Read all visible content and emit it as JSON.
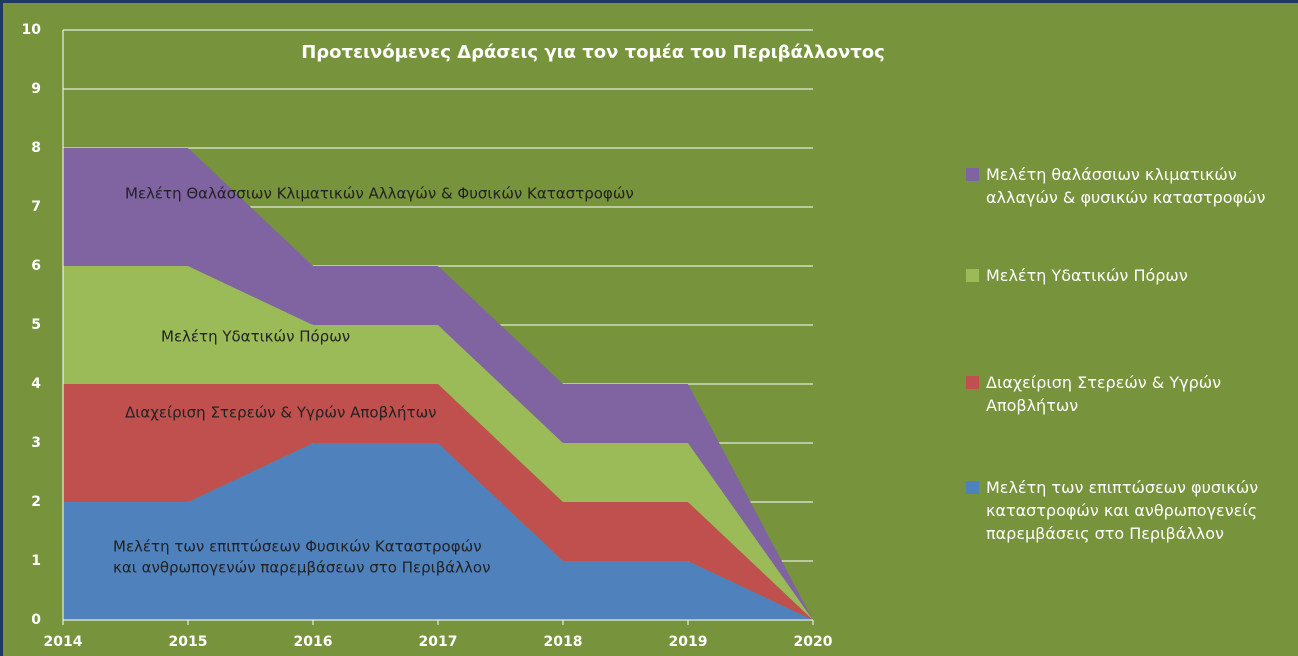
{
  "chart_data": {
    "type": "stacked-area",
    "title": "Προτεινόμενες Δράσεις για τον τομέα του Περιβάλλοντος",
    "x": [
      2014,
      2015,
      2016,
      2017,
      2018,
      2019,
      2020
    ],
    "series": [
      {
        "name": "Μελέτη των επιπτώσεων φυσικών καταστροφών και ανθρωπογενείς παρεμβάσεις στο Περιβάλλον",
        "color": "#4f81bd",
        "values": [
          2,
          2,
          3,
          3,
          1,
          1,
          0
        ]
      },
      {
        "name": "Διαχείριση Στερεών & Υγρών Αποβλήτων",
        "color": "#c0504d",
        "values": [
          2,
          2,
          1,
          1,
          1,
          1,
          0
        ]
      },
      {
        "name": "Μελέτη Υδατικών Πόρων",
        "color": "#9bbb59",
        "values": [
          2,
          2,
          1,
          1,
          1,
          1,
          0
        ]
      },
      {
        "name": "Μελέτη θαλάσσιων κλιματικών αλλαγών & φυσικών καταστροφών",
        "color": "#8064a2",
        "values": [
          2,
          2,
          1,
          1,
          1,
          1,
          0
        ]
      }
    ],
    "annotations": [
      "Μελέτη Θαλάσσιων Κλιματικών Αλλαγών & Φυσικών Καταστροφών",
      "Μελέτη Υδατικών Πόρων",
      "Διαχείριση Στερεών & Υγρών Αποβλήτων",
      "Μελέτη των επιπτώσεων Φυσικών Καταστροφών",
      "και ανθρωπογενών παρεμβάσεων στο Περιβάλλον"
    ],
    "xlim": [
      2014,
      2020
    ],
    "xticks": [
      2014,
      2015,
      2016,
      2017,
      2018,
      2019,
      2020
    ],
    "ylim": [
      0,
      10
    ],
    "yticks": [
      0,
      1,
      2,
      3,
      4,
      5,
      6,
      7,
      8,
      9,
      10
    ],
    "grid": true,
    "legend": "right",
    "background": "#77933c"
  }
}
